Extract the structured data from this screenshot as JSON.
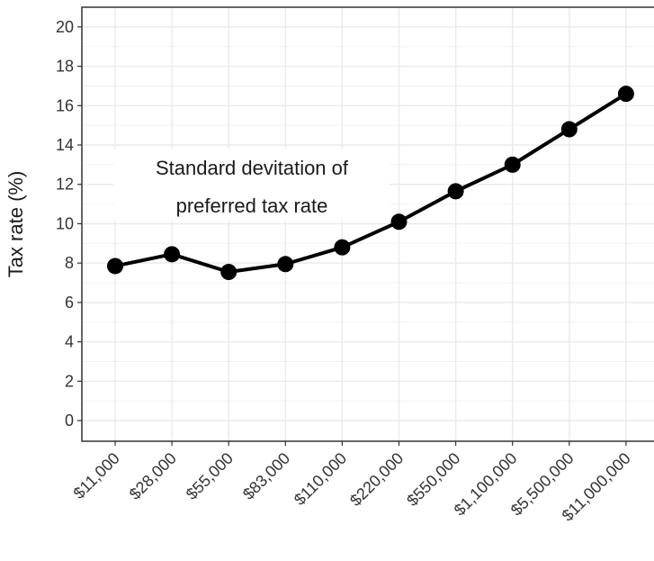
{
  "chart_data": {
    "type": "line",
    "y_label": "Tax rate (%)",
    "annotation": [
      "Standard devitation of",
      "preferred tax rate"
    ],
    "categories": [
      "$11,000",
      "$28,000",
      "$55,000",
      "$83,000",
      "$110,000",
      "$220,000",
      "$550,000",
      "$1,100,000",
      "$5,500,000",
      "$11,000,000"
    ],
    "values": [
      7.85,
      8.45,
      7.55,
      7.95,
      8.8,
      10.1,
      11.65,
      13.0,
      14.8,
      16.6
    ],
    "color": "#000000",
    "ylim": [
      -1.05,
      21.0
    ],
    "yticks": [
      0,
      2,
      4,
      6,
      8,
      10,
      12,
      14,
      16,
      18,
      20
    ],
    "grid": true
  }
}
